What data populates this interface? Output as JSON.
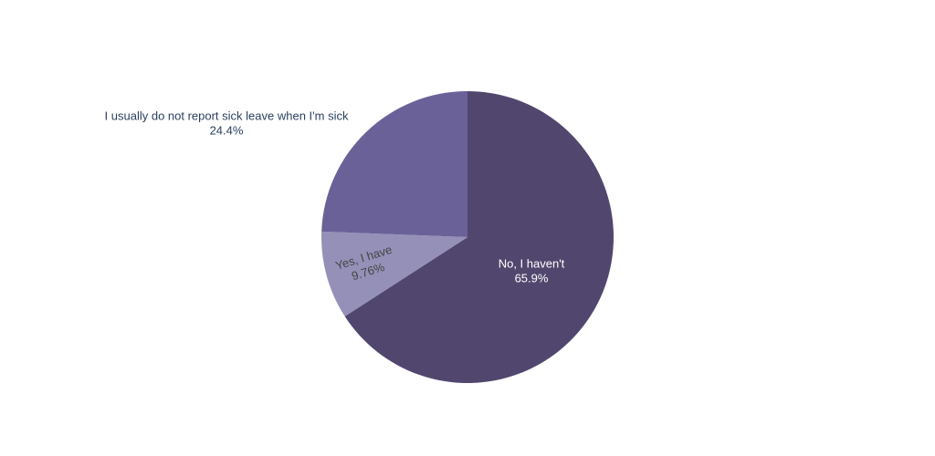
{
  "chart_data": {
    "type": "pie",
    "categories": [
      "No, I haven't",
      "Yes, I have",
      "I usually do not report sick leave when I'm sick"
    ],
    "values": [
      65.9,
      9.76,
      24.4
    ],
    "value_labels": [
      "65.9%",
      "9.76%",
      "24.4%"
    ],
    "colors": [
      "#51476e",
      "#9590b8",
      "#6b6199"
    ],
    "direction": "clockwise"
  }
}
